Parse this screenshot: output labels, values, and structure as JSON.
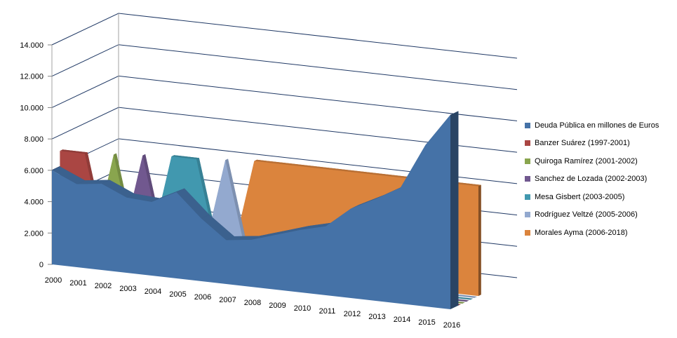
{
  "chart_data": {
    "type": "area",
    "title": "",
    "xlabel": "",
    "ylabel": "",
    "categories": [
      "2000",
      "2001",
      "2002",
      "2003",
      "2004",
      "2005",
      "2006",
      "2007",
      "2008",
      "2009",
      "2010",
      "2011",
      "2012",
      "2013",
      "2014",
      "2015",
      "2016"
    ],
    "ylim": [
      0,
      14000
    ],
    "yticks": [
      0,
      2000,
      4000,
      6000,
      8000,
      10000,
      12000,
      14000
    ],
    "ytick_labels": [
      "0",
      "2.000",
      "4.000",
      "6.000",
      "8.000",
      "10.000",
      "12.000",
      "14.000"
    ],
    "grid": true,
    "legend": "right",
    "series": [
      {
        "name": "Deuda Pública en millones de Euros",
        "color": "#4572A7",
        "values": [
          6000,
          5300,
          5500,
          4800,
          4700,
          5500,
          4000,
          2800,
          3000,
          3500,
          4000,
          4400,
          5700,
          6500,
          7400,
          10300,
          12400
        ]
      },
      {
        "name": "Banzer Suárez (1997-2001)",
        "color": "#AA4643",
        "values": [
          7000,
          7000,
          0,
          0,
          0,
          0,
          0,
          0,
          0,
          0,
          0,
          0,
          0,
          0,
          0,
          0,
          0
        ]
      },
      {
        "name": "Quiroga Ramírez (2001-2002)",
        "color": "#89A54E",
        "values": [
          0,
          0,
          7000,
          0,
          0,
          0,
          0,
          0,
          0,
          0,
          0,
          0,
          0,
          0,
          0,
          0,
          0
        ]
      },
      {
        "name": "Sanchez de Lozada (2002-2003)",
        "color": "#71588F",
        "values": [
          0,
          0,
          0,
          7000,
          0,
          0,
          0,
          0,
          0,
          0,
          0,
          0,
          0,
          0,
          0,
          0,
          0
        ]
      },
      {
        "name": "Mesa Gisbert (2003-2005)",
        "color": "#4198AF",
        "values": [
          0,
          0,
          0,
          0,
          7000,
          7000,
          0,
          0,
          0,
          0,
          0,
          0,
          0,
          0,
          0,
          0,
          0
        ]
      },
      {
        "name": "Rodríguez Veltzé (2005-2006)",
        "color": "#93A9CF",
        "values": [
          0,
          0,
          0,
          0,
          0,
          0,
          7000,
          0,
          0,
          0,
          0,
          0,
          0,
          0,
          0,
          0,
          0
        ]
      },
      {
        "name": "Morales Ayma (2006-2018)",
        "color": "#DB843D",
        "values": [
          0,
          0,
          0,
          0,
          0,
          0,
          0,
          7000,
          7000,
          7000,
          7000,
          7000,
          7000,
          7000,
          7000,
          7000,
          7000
        ]
      }
    ]
  }
}
